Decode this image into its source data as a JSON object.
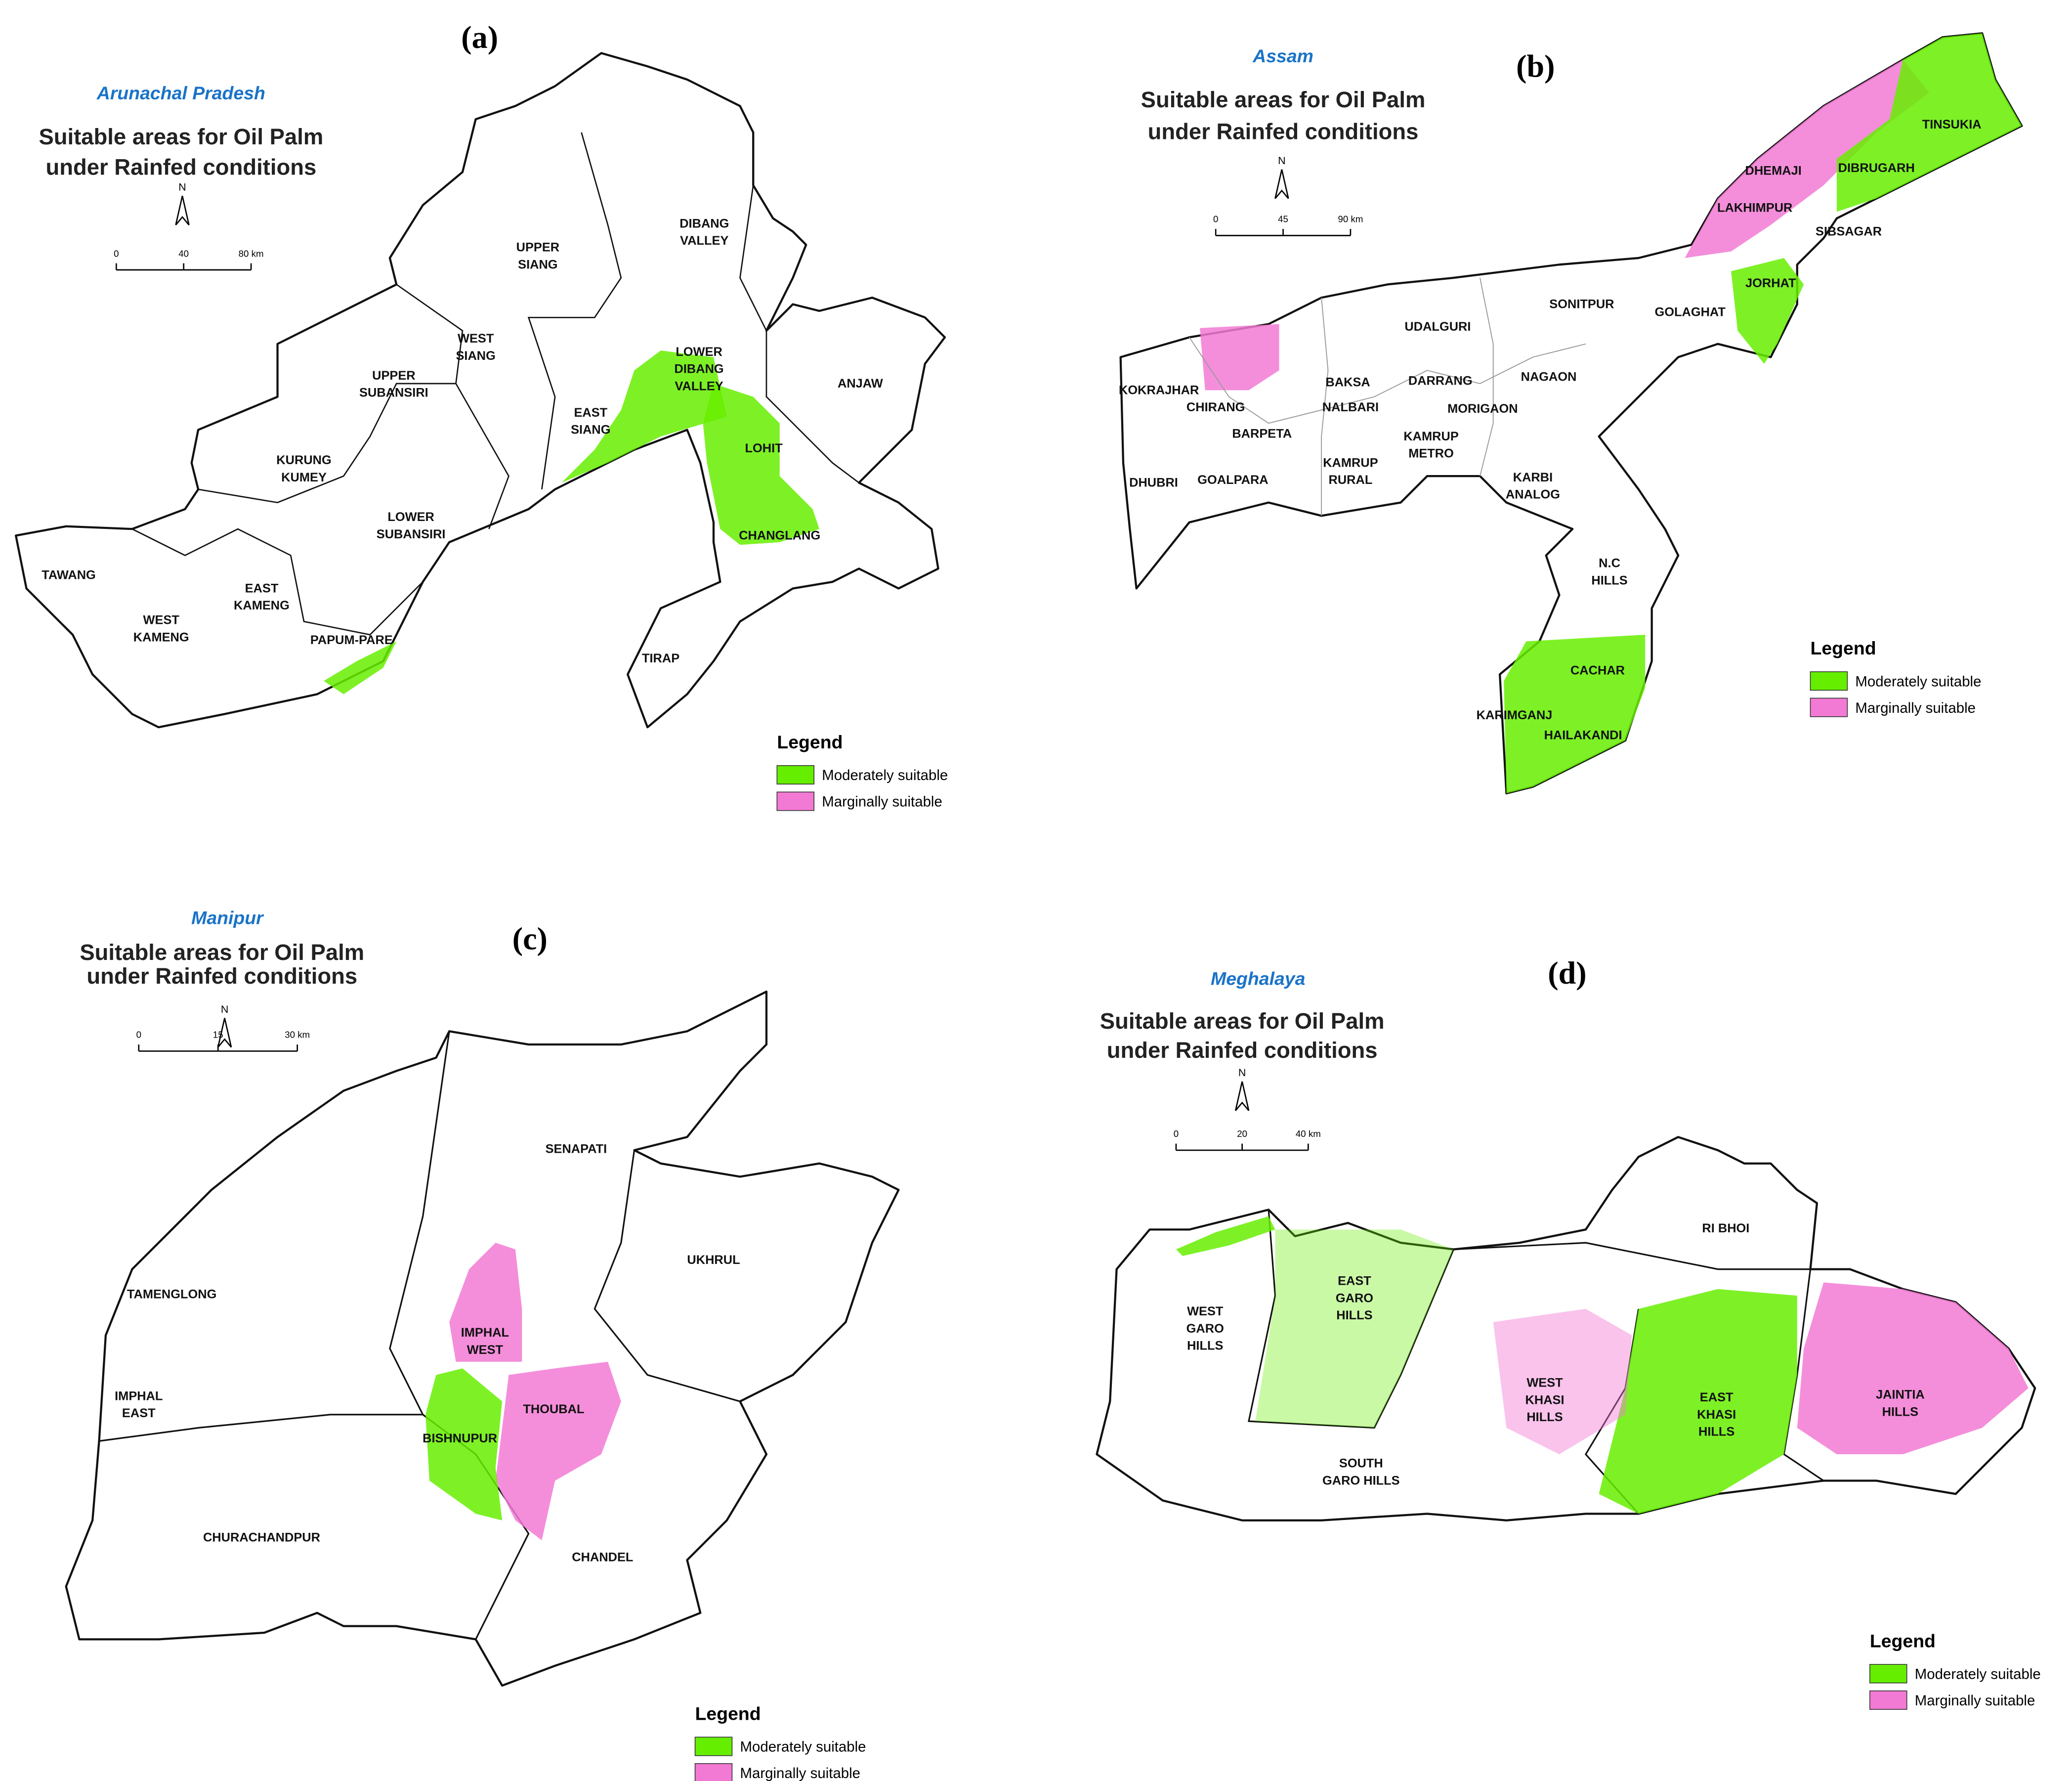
{
  "panels": [
    {
      "label": "(a)",
      "state": "Arunachal Pradesh",
      "title": [
        "Suitable areas for Oil Palm",
        "under Rainfed conditions"
      ],
      "north": "N",
      "scale": [
        "0",
        "40",
        "80 km"
      ],
      "legend": {
        "title": "Legend",
        "items": [
          {
            "name": "Moderately suitable",
            "color": "#66ee00"
          },
          {
            "name": "Marginally suitable",
            "color": "#f27ad4"
          }
        ]
      },
      "districts": [
        [
          "DIBANG",
          "VALLEY"
        ],
        [
          "UPPER",
          "SIANG"
        ],
        [
          "WEST",
          "SIANG"
        ],
        [
          "UPPER",
          "SUBANSIRI"
        ],
        [
          "LOWER",
          "DIBANG",
          "VALLEY"
        ],
        [
          "EAST",
          "SIANG"
        ],
        [
          "ANJAW"
        ],
        [
          "KURUNG",
          "KUMEY"
        ],
        [
          "LOHIT"
        ],
        [
          "LOWER",
          "SUBANSIRI"
        ],
        [
          "CHANGLANG"
        ],
        [
          "TAWANG"
        ],
        [
          "EAST",
          "KAMENG"
        ],
        [
          "WEST",
          "KAMENG"
        ],
        [
          "PAPUM-PARE"
        ],
        [
          "TIRAP"
        ]
      ]
    },
    {
      "label": "(b)",
      "state": "Assam",
      "title": [
        "Suitable areas for Oil Palm",
        "under Rainfed conditions"
      ],
      "north": "N",
      "scale": [
        "0",
        "45",
        "90 km"
      ],
      "legend": {
        "title": "Legend",
        "items": [
          {
            "name": "Moderately suitable",
            "color": "#66ee00"
          },
          {
            "name": "Marginally suitable",
            "color": "#f27ad4"
          }
        ]
      },
      "districts": [
        [
          "TINSUKIA"
        ],
        [
          "DHEMAJI"
        ],
        [
          "DIBRUGARH"
        ],
        [
          "LAKHIMPUR"
        ],
        [
          "SIBSAGAR"
        ],
        [
          "JORHAT"
        ],
        [
          "GOLAGHAT"
        ],
        [
          "SONITPUR"
        ],
        [
          "UDALGURI"
        ],
        [
          "NAGAON"
        ],
        [
          "KOKRAJHAR"
        ],
        [
          "BAKSA"
        ],
        [
          "DARRANG"
        ],
        [
          "CHIRANG"
        ],
        [
          "NALBARI"
        ],
        [
          "MORIGAON"
        ],
        [
          "BARPETA"
        ],
        [
          "KAMRUP",
          "METRO"
        ],
        [
          "GOALPARA"
        ],
        [
          "DHUBRI"
        ],
        [
          "KAMRUP",
          "RURAL"
        ],
        [
          "KARBI",
          "ANALOG"
        ],
        [
          "N.C",
          "HILLS"
        ],
        [
          "CACHAR"
        ],
        [
          "KARIMGANJ"
        ],
        [
          "HAILAKANDI"
        ]
      ]
    },
    {
      "label": "(c)",
      "state": "Manipur",
      "title": [
        "Suitable areas for Oil Palm",
        "under Rainfed conditions"
      ],
      "north": "N",
      "scale": [
        "0",
        "15",
        "30 km"
      ],
      "legend": {
        "title": "Legend",
        "items": [
          {
            "name": "Moderately suitable",
            "color": "#66ee00"
          },
          {
            "name": "Marginally suitable",
            "color": "#f27ad4"
          }
        ]
      },
      "districts": [
        [
          "SENAPATI"
        ],
        [
          "UKHRUL"
        ],
        [
          "TAMENGLONG"
        ],
        [
          "IMPHAL",
          "WEST"
        ],
        [
          "IMPHAL",
          "EAST"
        ],
        [
          "THOUBAL"
        ],
        [
          "BISHNUPUR"
        ],
        [
          "CHURACHANDPUR"
        ],
        [
          "CHANDEL"
        ]
      ]
    },
    {
      "label": "(d)",
      "state": "Meghalaya",
      "title": [
        "Suitable areas for Oil Palm",
        "under Rainfed conditions"
      ],
      "north": "N",
      "scale": [
        "0",
        "20",
        "40 km"
      ],
      "legend": {
        "title": "Legend",
        "items": [
          {
            "name": "Moderately suitable",
            "color": "#66ee00"
          },
          {
            "name": "Marginally suitable",
            "color": "#f27ad4"
          }
        ]
      },
      "districts": [
        [
          "RI BHOI"
        ],
        [
          "EAST",
          "GARO",
          "HILLS"
        ],
        [
          "WEST",
          "GARO",
          "HILLS"
        ],
        [
          "WEST",
          "KHASI",
          "HILLS"
        ],
        [
          "EAST",
          "KHASI",
          "HILLS"
        ],
        [
          "JAINTIA",
          "HILLS"
        ],
        [
          "SOUTH",
          "GARO HILLS"
        ]
      ]
    }
  ]
}
